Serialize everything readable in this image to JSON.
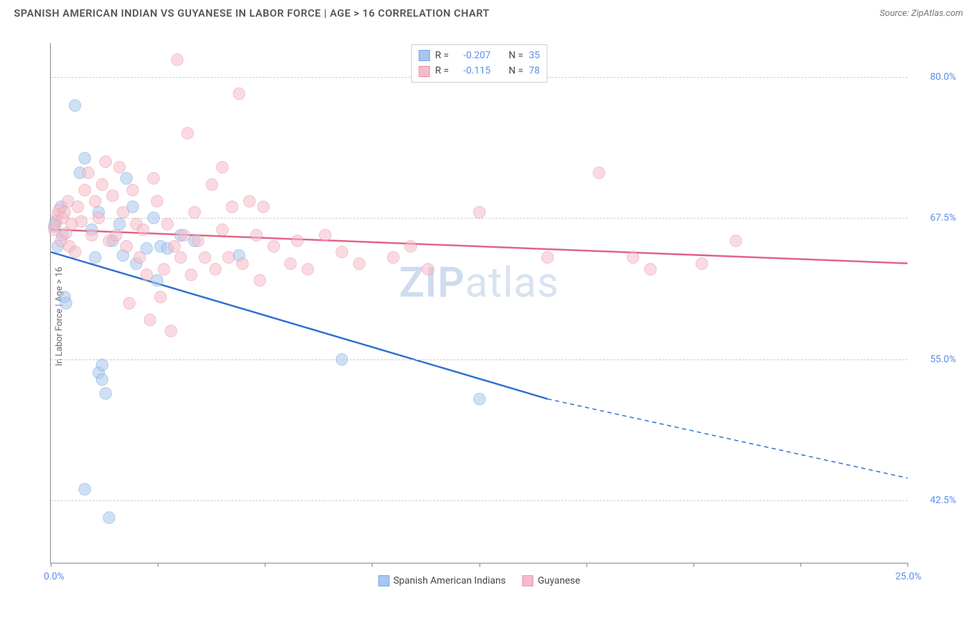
{
  "header": {
    "title": "SPANISH AMERICAN INDIAN VS GUYANESE IN LABOR FORCE | AGE > 16 CORRELATION CHART",
    "source": "Source: ZipAtlas.com"
  },
  "chart": {
    "type": "scatter",
    "y_label": "In Labor Force | Age > 16",
    "watermark": "ZIPatlas",
    "background_color": "#ffffff",
    "grid_color": "#cccccc",
    "axis_color": "#888888",
    "xlim": [
      0,
      25
    ],
    "ylim": [
      37,
      83
    ],
    "x_origin_label": "0.0%",
    "x_max_label": "25.0%",
    "x_tick_positions": [
      0,
      3.125,
      6.25,
      9.375,
      12.5,
      15.625,
      18.75,
      21.875,
      25
    ],
    "y_ticks": [
      {
        "v": 80.0,
        "label": "80.0%"
      },
      {
        "v": 67.5,
        "label": "67.5%"
      },
      {
        "v": 55.0,
        "label": "55.0%"
      },
      {
        "v": 42.5,
        "label": "42.5%"
      }
    ],
    "series": [
      {
        "id": "sai",
        "name": "Spanish American Indians",
        "color_fill": "#a9c7ee",
        "color_stroke": "#6fa2df",
        "line_color": "#2f6fd0",
        "marker_radius": 9,
        "marker_opacity": 0.55,
        "r": "-0.207",
        "n": "35",
        "trend": {
          "x1": 0,
          "y1": 64.5,
          "x2_solid": 14.5,
          "y2_solid": 51.5,
          "x2": 25,
          "y2": 44.5
        },
        "points": [
          [
            0.1,
            66.8
          ],
          [
            0.15,
            67.2
          ],
          [
            0.2,
            65.0
          ],
          [
            0.3,
            68.5
          ],
          [
            0.35,
            66.0
          ],
          [
            0.4,
            60.5
          ],
          [
            0.45,
            60.0
          ],
          [
            0.7,
            77.5
          ],
          [
            0.85,
            71.5
          ],
          [
            1.0,
            72.8
          ],
          [
            1.0,
            43.5
          ],
          [
            1.2,
            66.5
          ],
          [
            1.3,
            64.0
          ],
          [
            1.4,
            68.0
          ],
          [
            1.4,
            53.8
          ],
          [
            1.5,
            53.2
          ],
          [
            1.5,
            54.5
          ],
          [
            1.6,
            52.0
          ],
          [
            1.7,
            41.0
          ],
          [
            1.8,
            65.5
          ],
          [
            2.0,
            67.0
          ],
          [
            2.1,
            64.2
          ],
          [
            2.2,
            71.0
          ],
          [
            2.4,
            68.5
          ],
          [
            2.5,
            63.5
          ],
          [
            2.8,
            64.8
          ],
          [
            3.0,
            67.5
          ],
          [
            3.1,
            62.0
          ],
          [
            3.2,
            65.0
          ],
          [
            3.4,
            64.8
          ],
          [
            3.8,
            66.0
          ],
          [
            4.2,
            65.5
          ],
          [
            5.5,
            64.2
          ],
          [
            8.5,
            55.0
          ],
          [
            12.5,
            51.5
          ]
        ]
      },
      {
        "id": "guy",
        "name": "Guyanese",
        "color_fill": "#f6bcc9",
        "color_stroke": "#ea8fa6",
        "line_color": "#e26284",
        "marker_radius": 9,
        "marker_opacity": 0.55,
        "r": "-0.115",
        "n": "78",
        "trend": {
          "x1": 0,
          "y1": 66.5,
          "x2_solid": 25,
          "y2_solid": 63.5,
          "x2": 25,
          "y2": 63.5
        },
        "points": [
          [
            0.1,
            66.5
          ],
          [
            0.15,
            67.0
          ],
          [
            0.2,
            67.8
          ],
          [
            0.25,
            68.2
          ],
          [
            0.3,
            65.5
          ],
          [
            0.35,
            67.5
          ],
          [
            0.4,
            68.0
          ],
          [
            0.45,
            66.2
          ],
          [
            0.5,
            69.0
          ],
          [
            0.55,
            65.0
          ],
          [
            0.6,
            67.0
          ],
          [
            0.7,
            64.5
          ],
          [
            0.8,
            68.5
          ],
          [
            0.9,
            67.2
          ],
          [
            1.0,
            70.0
          ],
          [
            1.1,
            71.5
          ],
          [
            1.2,
            66.0
          ],
          [
            1.3,
            69.0
          ],
          [
            1.4,
            67.5
          ],
          [
            1.5,
            70.5
          ],
          [
            1.6,
            72.5
          ],
          [
            1.7,
            65.5
          ],
          [
            1.8,
            69.5
          ],
          [
            1.9,
            66.0
          ],
          [
            2.0,
            72.0
          ],
          [
            2.1,
            68.0
          ],
          [
            2.2,
            65.0
          ],
          [
            2.3,
            60.0
          ],
          [
            2.4,
            70.0
          ],
          [
            2.5,
            67.0
          ],
          [
            2.6,
            64.0
          ],
          [
            2.7,
            66.5
          ],
          [
            2.8,
            62.5
          ],
          [
            2.9,
            58.5
          ],
          [
            3.0,
            71.0
          ],
          [
            3.1,
            69.0
          ],
          [
            3.2,
            60.5
          ],
          [
            3.3,
            63.0
          ],
          [
            3.4,
            67.0
          ],
          [
            3.5,
            57.5
          ],
          [
            3.6,
            65.0
          ],
          [
            3.7,
            81.5
          ],
          [
            3.8,
            64.0
          ],
          [
            3.9,
            66.0
          ],
          [
            4.0,
            75.0
          ],
          [
            4.1,
            62.5
          ],
          [
            4.2,
            68.0
          ],
          [
            4.3,
            65.5
          ],
          [
            4.5,
            64.0
          ],
          [
            4.7,
            70.5
          ],
          [
            4.8,
            63.0
          ],
          [
            5.0,
            66.5
          ],
          [
            5.0,
            72.0
          ],
          [
            5.2,
            64.0
          ],
          [
            5.3,
            68.5
          ],
          [
            5.5,
            78.5
          ],
          [
            5.6,
            63.5
          ],
          [
            5.8,
            69.0
          ],
          [
            6.0,
            66.0
          ],
          [
            6.1,
            62.0
          ],
          [
            6.2,
            68.5
          ],
          [
            6.5,
            65.0
          ],
          [
            7.0,
            63.5
          ],
          [
            7.2,
            65.5
          ],
          [
            7.5,
            63.0
          ],
          [
            8.0,
            66.0
          ],
          [
            8.5,
            64.5
          ],
          [
            9.0,
            63.5
          ],
          [
            10.0,
            64.0
          ],
          [
            10.5,
            65.0
          ],
          [
            11.0,
            63.0
          ],
          [
            12.5,
            68.0
          ],
          [
            14.5,
            64.0
          ],
          [
            16.0,
            71.5
          ],
          [
            17.0,
            64.0
          ],
          [
            17.5,
            63.0
          ],
          [
            19.0,
            63.5
          ],
          [
            20.0,
            65.5
          ]
        ]
      }
    ],
    "legend_top": {
      "r_label": "R =",
      "n_label": "N ="
    },
    "bottom_legend": [
      {
        "series": "sai"
      },
      {
        "series": "guy"
      }
    ]
  }
}
